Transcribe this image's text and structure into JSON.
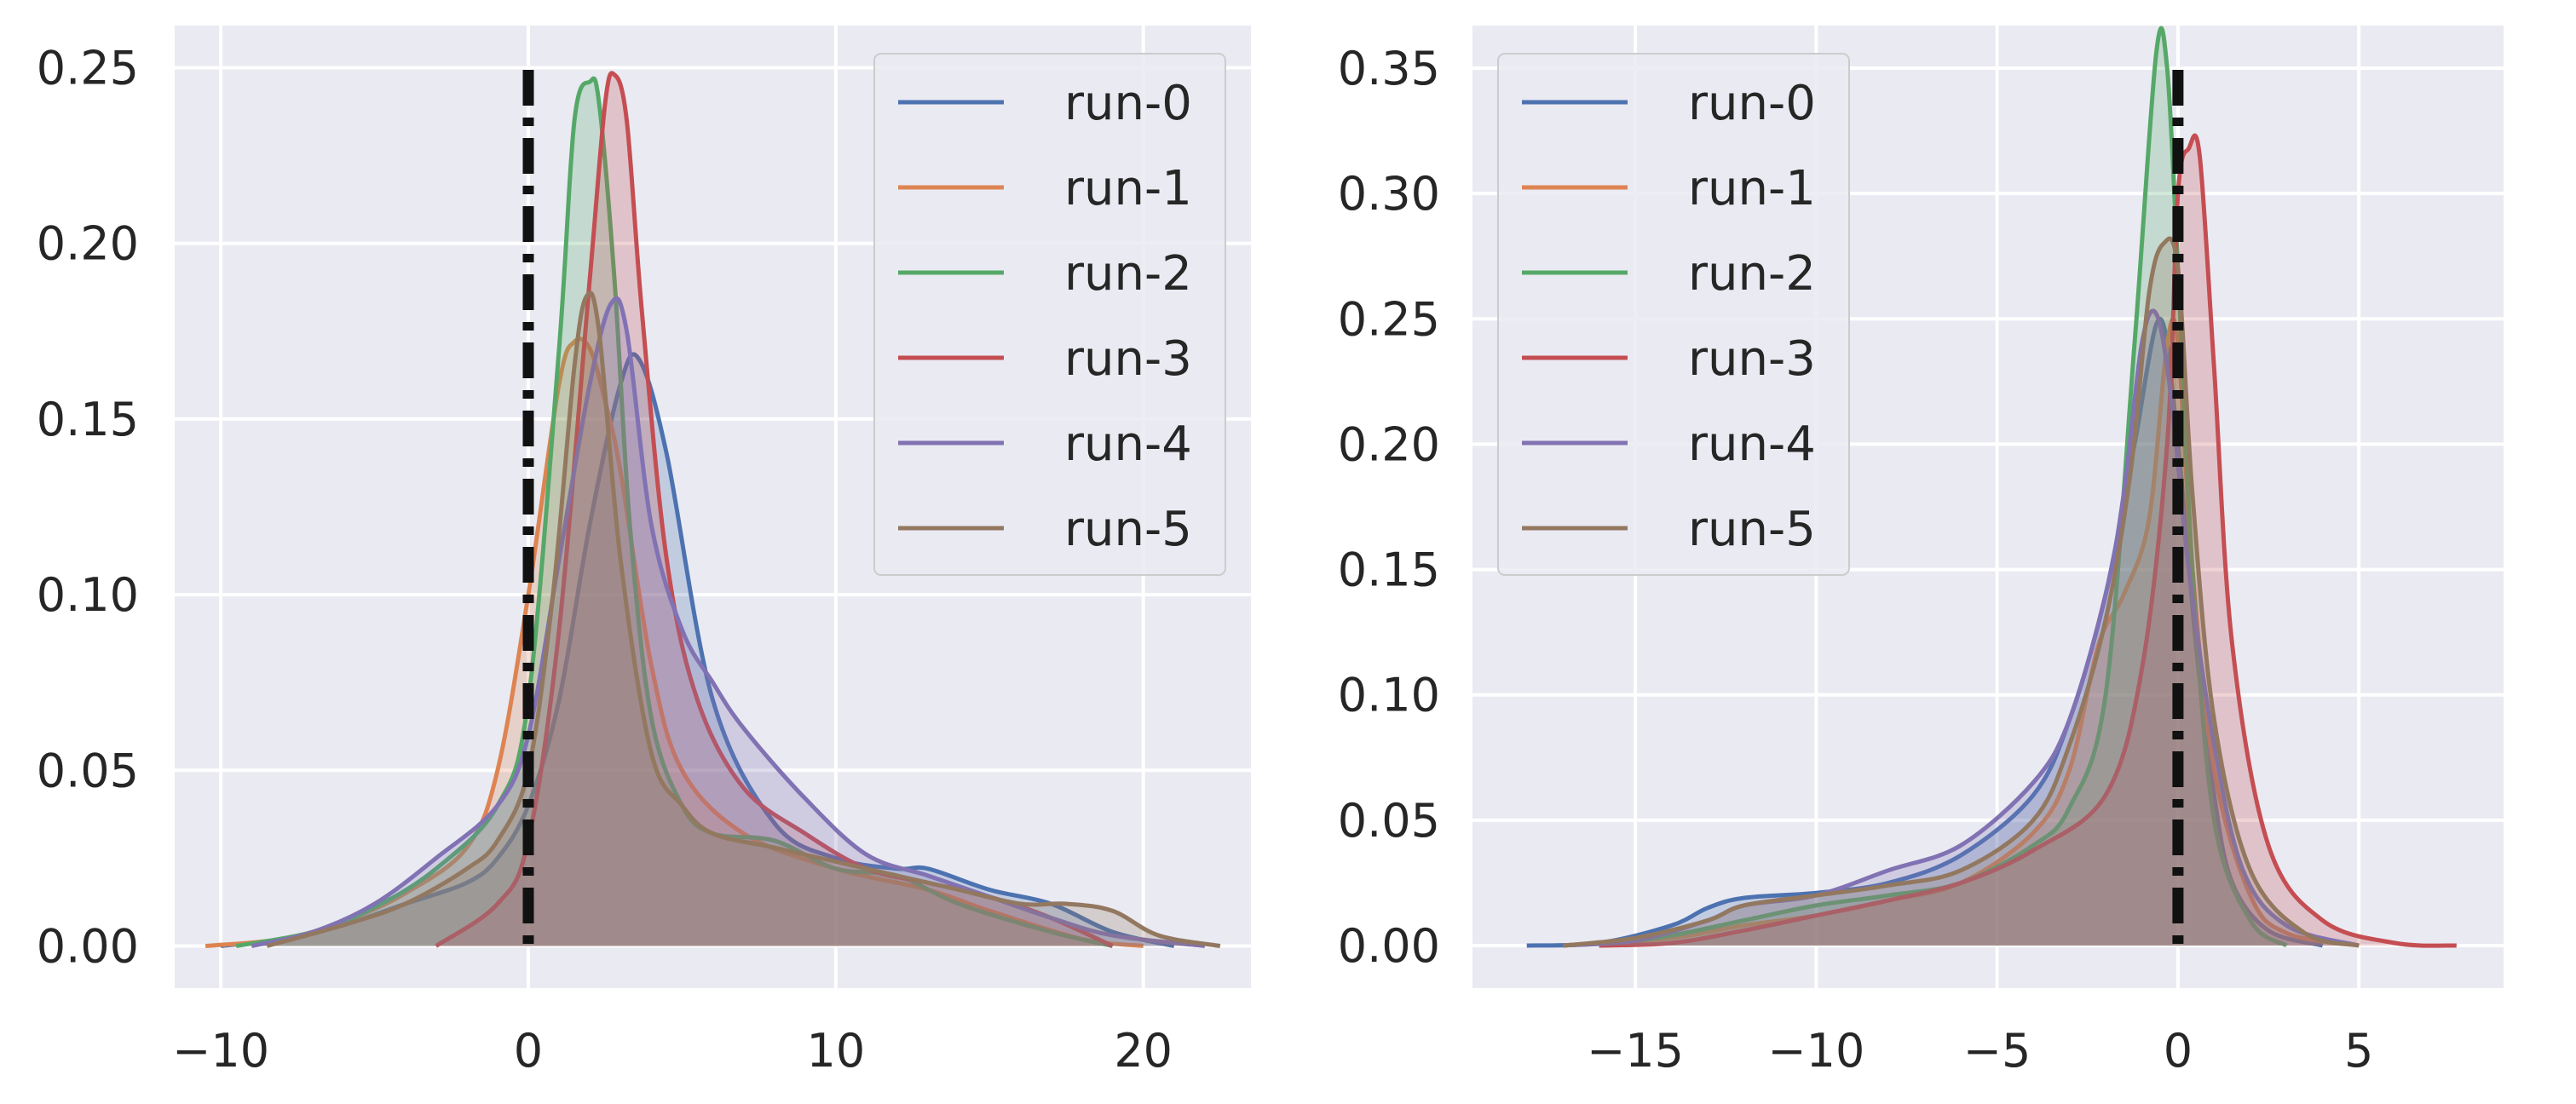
{
  "chart_data": [
    {
      "type": "kde",
      "title": "",
      "xlabel": "",
      "ylabel": "",
      "xlim": [
        -11.5,
        23.5
      ],
      "ylim": [
        -0.012,
        0.262
      ],
      "xticks": [
        -10,
        0,
        10,
        20
      ],
      "xtick_labels": [
        "−10",
        "0",
        "10",
        "20"
      ],
      "yticks": [
        0.0,
        0.05,
        0.1,
        0.15,
        0.2,
        0.25
      ],
      "ytick_labels": [
        "0.00",
        "0.05",
        "0.10",
        "0.15",
        "0.20",
        "0.25"
      ],
      "grid": true,
      "legend_position": "upper-right",
      "reference_line": {
        "x": 0,
        "style": "dash-dot",
        "color": "#111111"
      },
      "series": [
        {
          "name": "run-0",
          "color": "#4c72b0",
          "x": [
            -10,
            -8,
            -6,
            -4,
            -2,
            -1,
            0,
            1,
            2,
            3,
            3.6,
            4.5,
            6,
            8,
            10,
            12,
            13,
            15,
            17,
            19,
            21
          ],
          "y": [
            0,
            0.002,
            0.006,
            0.012,
            0.018,
            0.025,
            0.04,
            0.07,
            0.12,
            0.16,
            0.167,
            0.14,
            0.07,
            0.035,
            0.025,
            0.022,
            0.022,
            0.016,
            0.012,
            0.004,
            0
          ]
        },
        {
          "name": "run-1",
          "color": "#dd8452",
          "x": [
            -10.5,
            -8,
            -6,
            -4,
            -2,
            -1,
            0,
            1,
            1.5,
            2,
            2.5,
            3,
            4,
            5,
            7,
            10,
            13,
            15,
            18,
            20
          ],
          "y": [
            0,
            0.002,
            0.007,
            0.015,
            0.028,
            0.05,
            0.1,
            0.16,
            0.172,
            0.17,
            0.155,
            0.135,
            0.08,
            0.05,
            0.032,
            0.022,
            0.016,
            0.01,
            0.002,
            0
          ]
        },
        {
          "name": "run-2",
          "color": "#55a868",
          "x": [
            -9.5,
            -7,
            -5,
            -3,
            -1,
            0,
            1,
            1.5,
            2,
            2.3,
            2.8,
            3.3,
            4,
            5,
            6,
            8,
            10,
            12,
            14,
            17,
            19
          ],
          "y": [
            0,
            0.004,
            0.011,
            0.022,
            0.04,
            0.07,
            0.17,
            0.235,
            0.246,
            0.24,
            0.19,
            0.12,
            0.065,
            0.04,
            0.032,
            0.03,
            0.022,
            0.02,
            0.012,
            0.004,
            0
          ]
        },
        {
          "name": "run-3",
          "color": "#c44e52",
          "x": [
            -3,
            -1,
            0,
            1,
            2,
            2.5,
            2.8,
            3.2,
            3.7,
            4.5,
            5.5,
            7,
            9,
            11,
            13,
            15,
            17,
            19
          ],
          "y": [
            0,
            0.012,
            0.03,
            0.09,
            0.19,
            0.24,
            0.248,
            0.235,
            0.18,
            0.11,
            0.07,
            0.045,
            0.032,
            0.022,
            0.018,
            0.014,
            0.008,
            0
          ]
        },
        {
          "name": "run-4",
          "color": "#8172b3",
          "x": [
            -9,
            -7,
            -5,
            -3,
            -1,
            0,
            1,
            2,
            2.7,
            3.2,
            4,
            5,
            6,
            7,
            9,
            11,
            13,
            15,
            17,
            19,
            22
          ],
          "y": [
            0,
            0.004,
            0.012,
            0.025,
            0.04,
            0.06,
            0.11,
            0.16,
            0.183,
            0.175,
            0.12,
            0.09,
            0.075,
            0.062,
            0.042,
            0.026,
            0.02,
            0.014,
            0.008,
            0.003,
            0
          ]
        },
        {
          "name": "run-5",
          "color": "#937860",
          "x": [
            -8.5,
            -6,
            -4,
            -2,
            -1,
            0,
            0.8,
            1.5,
            1.9,
            2.3,
            3,
            4,
            5,
            6,
            8,
            10,
            12,
            14,
            16,
            17.5,
            19,
            20.5,
            22.5
          ],
          "y": [
            0,
            0.006,
            0.012,
            0.022,
            0.03,
            0.05,
            0.1,
            0.165,
            0.185,
            0.175,
            0.11,
            0.055,
            0.04,
            0.032,
            0.028,
            0.024,
            0.02,
            0.016,
            0.012,
            0.012,
            0.01,
            0.003,
            0
          ]
        }
      ]
    },
    {
      "type": "kde",
      "title": "",
      "xlabel": "",
      "ylabel": "",
      "xlim": [
        -19.5,
        9.0
      ],
      "ylim": [
        -0.017,
        0.367
      ],
      "xticks": [
        -15,
        -10,
        -5,
        0,
        5
      ],
      "xtick_labels": [
        "−15",
        "−10",
        "−5",
        "0",
        "5"
      ],
      "yticks": [
        0.0,
        0.05,
        0.1,
        0.15,
        0.2,
        0.25,
        0.3,
        0.35
      ],
      "ytick_labels": [
        "0.00",
        "0.05",
        "0.10",
        "0.15",
        "0.20",
        "0.25",
        "0.30",
        "0.35"
      ],
      "grid": true,
      "legend_position": "upper-left",
      "reference_line": {
        "x": 0,
        "style": "dash-dot",
        "color": "#111111"
      },
      "series": [
        {
          "name": "run-0",
          "color": "#4c72b0",
          "x": [
            -18,
            -16,
            -14,
            -13,
            -12,
            -10,
            -8,
            -6,
            -4,
            -3,
            -2,
            -1.2,
            -0.5,
            0,
            0.5,
            1,
            1.5,
            2.5,
            4
          ],
          "y": [
            0,
            0.001,
            0.008,
            0.015,
            0.019,
            0.021,
            0.025,
            0.036,
            0.06,
            0.09,
            0.14,
            0.2,
            0.25,
            0.2,
            0.12,
            0.06,
            0.025,
            0.006,
            0
          ]
        },
        {
          "name": "run-1",
          "color": "#dd8452",
          "x": [
            -17,
            -14,
            -12,
            -10,
            -8,
            -6,
            -4,
            -3,
            -2.2,
            -1.5,
            -0.8,
            -0.3,
            0,
            0.4,
            1,
            2,
            3,
            5
          ],
          "y": [
            0,
            0.003,
            0.008,
            0.012,
            0.018,
            0.025,
            0.045,
            0.07,
            0.12,
            0.14,
            0.17,
            0.24,
            0.24,
            0.15,
            0.07,
            0.02,
            0.005,
            0
          ]
        },
        {
          "name": "run-2",
          "color": "#55a868",
          "x": [
            -16,
            -14,
            -12,
            -10,
            -8,
            -6,
            -4,
            -3,
            -2,
            -1.2,
            -0.6,
            -0.3,
            0,
            0.4,
            1,
            2,
            3
          ],
          "y": [
            0,
            0.004,
            0.01,
            0.016,
            0.02,
            0.025,
            0.04,
            0.055,
            0.1,
            0.24,
            0.356,
            0.35,
            0.27,
            0.15,
            0.05,
            0.01,
            0
          ]
        },
        {
          "name": "run-3",
          "color": "#c44e52",
          "x": [
            -16,
            -14,
            -12,
            -10,
            -8,
            -6,
            -4,
            -2,
            -1,
            -0.3,
            0,
            0.3,
            0.6,
            1,
            1.5,
            2.5,
            4,
            6,
            7.7
          ],
          "y": [
            0,
            0.001,
            0.006,
            0.012,
            0.018,
            0.025,
            0.038,
            0.06,
            0.11,
            0.2,
            0.3,
            0.318,
            0.315,
            0.23,
            0.12,
            0.04,
            0.01,
            0.001,
            0
          ]
        },
        {
          "name": "run-4",
          "color": "#8172b3",
          "x": [
            -17,
            -15,
            -13,
            -12,
            -10,
            -8,
            -6,
            -4,
            -3,
            -2,
            -1.5,
            -1,
            -0.6,
            -0.2,
            0.3,
            1,
            1.8,
            3,
            5
          ],
          "y": [
            0,
            0.002,
            0.01,
            0.016,
            0.02,
            0.03,
            0.04,
            0.065,
            0.09,
            0.14,
            0.18,
            0.24,
            0.252,
            0.22,
            0.15,
            0.08,
            0.03,
            0.008,
            0
          ]
        },
        {
          "name": "run-5",
          "color": "#937860",
          "x": [
            -17,
            -15,
            -13,
            -12,
            -10,
            -8,
            -6,
            -4,
            -3,
            -2,
            -1.3,
            -0.8,
            -0.4,
            0,
            0.4,
            1,
            2,
            3.5,
            5
          ],
          "y": [
            0,
            0.003,
            0.01,
            0.016,
            0.02,
            0.024,
            0.03,
            0.05,
            0.08,
            0.13,
            0.19,
            0.26,
            0.28,
            0.27,
            0.18,
            0.09,
            0.03,
            0.005,
            0
          ]
        }
      ]
    }
  ]
}
